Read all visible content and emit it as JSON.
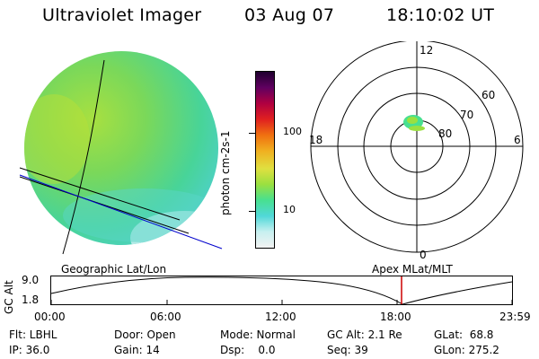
{
  "header": {
    "title": "Ultraviolet Imager",
    "date": "03 Aug 07",
    "time": "18:10:02 UT"
  },
  "colorbar": {
    "unit_label": "photon cm-2s-1",
    "ticks": [
      "100",
      "10"
    ],
    "colors": [
      "#f2f2f2",
      "#c8f0f0",
      "#50d8d8",
      "#48e090",
      "#9ae040",
      "#e0e040",
      "#f0b020",
      "#f07010",
      "#e02020",
      "#b00040",
      "#600060",
      "#200030"
    ]
  },
  "polar": {
    "mlt_labels": [
      "12",
      "18",
      "6",
      "0"
    ],
    "lat_labels": [
      "60",
      "70",
      "80"
    ]
  },
  "timeline": {
    "left_label": "Geographic Lat/Lon",
    "right_label": "Apex  MLat/MLT",
    "y_label": "GC Alt",
    "y_ticks": [
      "9.0",
      "1.8"
    ],
    "x_ticks": [
      "00:00",
      "06:00",
      "12:00",
      "18:00",
      "23:59"
    ],
    "current_time_marker": "18:10"
  },
  "info": {
    "flt": "Flt: LBHL",
    "ip": "IP: 36.0",
    "door": "Door: Open",
    "gain": "Gain: 14",
    "mode": "Mode: Normal",
    "dsp": "Dsp:    0.0",
    "gc_alt": "GC Alt: 2.1 Re",
    "seq": "Seq: 39",
    "glat": "GLat:  68.8",
    "glon": "GLon: 275.2"
  }
}
